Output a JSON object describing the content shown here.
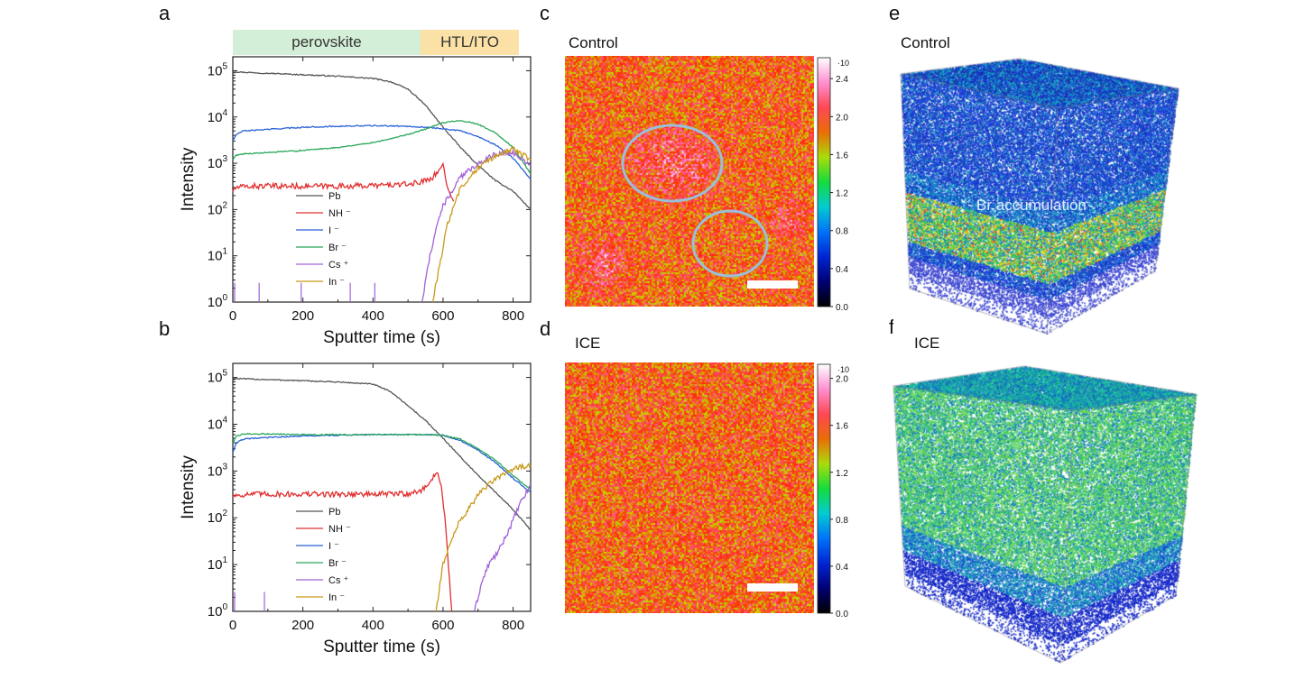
{
  "panels": {
    "a": "a",
    "b": "b",
    "c": "c",
    "d": "d",
    "e": "e",
    "f": "f"
  },
  "region_bar": {
    "perovskite": "perovskite",
    "htl": "HTL/ITO",
    "perovskite_color": "#d4efd7",
    "htl_color": "#fbe1a6"
  },
  "map_titles": {
    "c": "Control",
    "d": "ICE",
    "e": "Control",
    "f": "ICE"
  },
  "annotation_e": "Br accumulation",
  "colors": {
    "Pb": "#555555",
    "NH": "#e03030",
    "I": "#2a62d8",
    "Br": "#2aa85a",
    "Cs": "#a060d8",
    "In": "#c89a1a"
  },
  "colorbar_c": {
    "exp": "10",
    "ticks": [
      "2.4",
      "2.0",
      "1.6",
      "1.2",
      "0.8",
      "0.4",
      "0.0"
    ]
  },
  "colorbar_d": {
    "exp": "10",
    "ticks": [
      "2.0",
      "1.6",
      "1.2",
      "0.8",
      "0.4",
      "0.0"
    ]
  },
  "chart_data": [
    {
      "type": "line",
      "panel": "a",
      "xlabel": "Sputter time (s)",
      "ylabel": "Intensity",
      "xlim": [
        0,
        850
      ],
      "ylim": [
        1,
        200000
      ],
      "yscale": "log",
      "xticks": [
        "0",
        "200",
        "400",
        "600",
        "800"
      ],
      "yticks": [
        {
          "base": "10",
          "exp": "0"
        },
        {
          "base": "10",
          "exp": "1"
        },
        {
          "base": "10",
          "exp": "2"
        },
        {
          "base": "10",
          "exp": "3"
        },
        {
          "base": "10",
          "exp": "4"
        },
        {
          "base": "10",
          "exp": "5"
        }
      ],
      "legend": [
        "Pb",
        "NH ⁻",
        "I ⁻",
        "Br ⁻",
        "Cs ⁺",
        "In ⁻"
      ],
      "series": [
        {
          "name": "Pb",
          "x": [
            0,
            100,
            200,
            300,
            400,
            450,
            500,
            550,
            600,
            650,
            700,
            750,
            800,
            850
          ],
          "y": [
            95000,
            88000,
            82000,
            76000,
            68000,
            58000,
            40000,
            18000,
            6000,
            2200,
            900,
            420,
            250,
            100
          ]
        },
        {
          "name": "NH ⁻",
          "x": [
            0,
            10,
            50,
            100,
            200,
            300,
            400,
            500,
            540,
            570,
            590,
            600,
            610,
            620,
            630
          ],
          "y": [
            250,
            300,
            320,
            320,
            320,
            320,
            330,
            350,
            400,
            500,
            700,
            1000,
            400,
            200,
            150
          ]
        },
        {
          "name": "I ⁻",
          "x": [
            0,
            10,
            30,
            100,
            200,
            300,
            400,
            500,
            550,
            600,
            650,
            700,
            750,
            800,
            850
          ],
          "y": [
            3000,
            4200,
            5000,
            5400,
            6000,
            6300,
            6500,
            6300,
            6000,
            5600,
            5000,
            3800,
            2500,
            1300,
            450
          ]
        },
        {
          "name": "Br ⁻",
          "x": [
            0,
            10,
            30,
            100,
            200,
            300,
            400,
            500,
            550,
            600,
            650,
            700,
            750,
            800,
            850
          ],
          "y": [
            1200,
            1500,
            1600,
            1700,
            1900,
            2200,
            2800,
            4200,
            5500,
            7500,
            8500,
            7000,
            4500,
            2200,
            600
          ]
        },
        {
          "name": "Cs ⁺",
          "x": [
            540,
            560,
            580,
            600,
            650,
            700,
            750,
            800,
            850
          ],
          "y": [
            1,
            8,
            40,
            120,
            500,
            1000,
            1600,
            1700,
            900
          ]
        },
        {
          "name": "In ⁻",
          "x": [
            570,
            590,
            610,
            630,
            650,
            700,
            750,
            800,
            850
          ],
          "y": [
            1,
            6,
            40,
            120,
            300,
            800,
            1500,
            2000,
            1200
          ]
        }
      ]
    },
    {
      "type": "line",
      "panel": "b",
      "xlabel": "Sputter time (s)",
      "ylabel": "Intensity",
      "xlim": [
        0,
        850
      ],
      "ylim": [
        1,
        200000
      ],
      "yscale": "log",
      "xticks": [
        "0",
        "200",
        "400",
        "600",
        "800"
      ],
      "yticks": [
        {
          "base": "10",
          "exp": "0"
        },
        {
          "base": "10",
          "exp": "1"
        },
        {
          "base": "10",
          "exp": "2"
        },
        {
          "base": "10",
          "exp": "3"
        },
        {
          "base": "10",
          "exp": "4"
        },
        {
          "base": "10",
          "exp": "5"
        }
      ],
      "legend": [
        "Pb",
        "NH ⁻",
        "I ⁻",
        "Br ⁻",
        "Cs ⁺",
        "In ⁻"
      ],
      "series": [
        {
          "name": "Pb",
          "x": [
            0,
            100,
            200,
            300,
            400,
            450,
            500,
            550,
            600,
            650,
            700,
            750,
            800,
            850
          ],
          "y": [
            95000,
            90000,
            85000,
            80000,
            72000,
            50000,
            25000,
            12000,
            5000,
            2000,
            800,
            350,
            150,
            55
          ]
        },
        {
          "name": "NH ⁻",
          "x": [
            0,
            50,
            100,
            200,
            300,
            400,
            500,
            540,
            570,
            585,
            595,
            605,
            615,
            625
          ],
          "y": [
            300,
            320,
            320,
            320,
            320,
            320,
            330,
            380,
            700,
            950,
            500,
            100,
            10,
            1
          ]
        },
        {
          "name": "I ⁻",
          "x": [
            0,
            10,
            30,
            100,
            200,
            300,
            400,
            500,
            550,
            600,
            650,
            700,
            750,
            800,
            850
          ],
          "y": [
            2500,
            4000,
            4800,
            5200,
            5600,
            5800,
            6000,
            6000,
            6000,
            5800,
            4500,
            2800,
            1500,
            700,
            350
          ]
        },
        {
          "name": "Br ⁻",
          "x": [
            0,
            10,
            30,
            100,
            200,
            300,
            400,
            500,
            550,
            600,
            650,
            700,
            750,
            800,
            850
          ],
          "y": [
            4000,
            5500,
            6200,
            6200,
            6000,
            6000,
            6000,
            6000,
            6000,
            5800,
            4800,
            3000,
            1700,
            800,
            400
          ]
        },
        {
          "name": "Cs ⁺",
          "x": [
            690,
            710,
            730,
            760,
            790,
            820,
            850
          ],
          "y": [
            1,
            4,
            10,
            20,
            60,
            200,
            500
          ]
        },
        {
          "name": "In ⁻",
          "x": [
            580,
            600,
            620,
            650,
            700,
            750,
            800,
            850
          ],
          "y": [
            1,
            10,
            30,
            90,
            300,
            700,
            1100,
            1300
          ]
        }
      ]
    }
  ]
}
